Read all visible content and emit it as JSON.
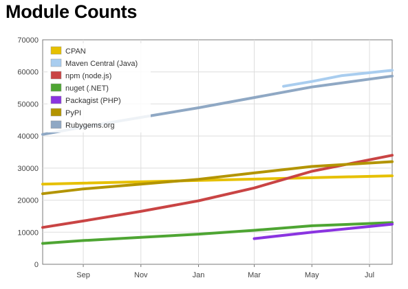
{
  "page_title": "Module Counts",
  "chart_data": {
    "type": "line",
    "title": "Module Counts",
    "xlabel": "",
    "ylabel": "",
    "ylim": [
      0,
      70000
    ],
    "y_ticks": [
      0,
      10000,
      20000,
      30000,
      40000,
      50000,
      60000,
      70000
    ],
    "x_ticks": [
      "Sep",
      "Nov",
      "Jan",
      "Mar",
      "May",
      "Jul"
    ],
    "x_domain": [
      "2012-07-20",
      "2013-07-25"
    ],
    "x_tick_dates": [
      "2012-09-01",
      "2012-11-01",
      "2013-01-01",
      "2013-03-01",
      "2013-05-01",
      "2013-07-01"
    ],
    "grid": true,
    "legend_position": "top-left",
    "series": [
      {
        "name": "CPAN",
        "color": "#e6c000",
        "points": [
          [
            "2012-07-20",
            25000
          ],
          [
            "2013-07-25",
            27600
          ]
        ]
      },
      {
        "name": "Maven Central (Java)",
        "color": "#a9cdef",
        "points": [
          [
            "2013-04-01",
            55500
          ],
          [
            "2013-05-01",
            57000
          ],
          [
            "2013-06-01",
            58800
          ],
          [
            "2013-07-25",
            60500
          ]
        ]
      },
      {
        "name": "npm (node.js)",
        "color": "#c94444",
        "points": [
          [
            "2012-07-20",
            11500
          ],
          [
            "2012-09-01",
            13500
          ],
          [
            "2012-11-01",
            16500
          ],
          [
            "2013-01-01",
            19800
          ],
          [
            "2013-03-01",
            23800
          ],
          [
            "2013-05-01",
            29000
          ],
          [
            "2013-07-25",
            34000
          ]
        ]
      },
      {
        "name": "nuget (.NET)",
        "color": "#4ea533",
        "points": [
          [
            "2012-07-20",
            6500
          ],
          [
            "2012-09-01",
            7400
          ],
          [
            "2012-11-01",
            8400
          ],
          [
            "2013-01-01",
            9400
          ],
          [
            "2013-03-01",
            10600
          ],
          [
            "2013-05-01",
            12000
          ],
          [
            "2013-07-25",
            13000
          ]
        ]
      },
      {
        "name": "Packagist (PHP)",
        "color": "#8a34e0",
        "points": [
          [
            "2013-03-01",
            8000
          ],
          [
            "2013-05-01",
            10000
          ],
          [
            "2013-07-25",
            12500
          ]
        ]
      },
      {
        "name": "PyPI",
        "color": "#b39400",
        "points": [
          [
            "2012-07-20",
            22000
          ],
          [
            "2012-09-01",
            23500
          ],
          [
            "2012-11-01",
            25000
          ],
          [
            "2013-01-01",
            26500
          ],
          [
            "2013-03-01",
            28500
          ],
          [
            "2013-05-01",
            30500
          ],
          [
            "2013-07-25",
            32000
          ]
        ]
      },
      {
        "name": "Rubygems.org",
        "color": "#8fa8c4",
        "points": [
          [
            "2012-07-20",
            40500
          ],
          [
            "2012-09-01",
            42800
          ],
          [
            "2012-11-01",
            45800
          ],
          [
            "2013-01-01",
            48800
          ],
          [
            "2013-03-01",
            52000
          ],
          [
            "2013-05-01",
            55300
          ],
          [
            "2013-07-25",
            58700
          ]
        ]
      }
    ]
  }
}
